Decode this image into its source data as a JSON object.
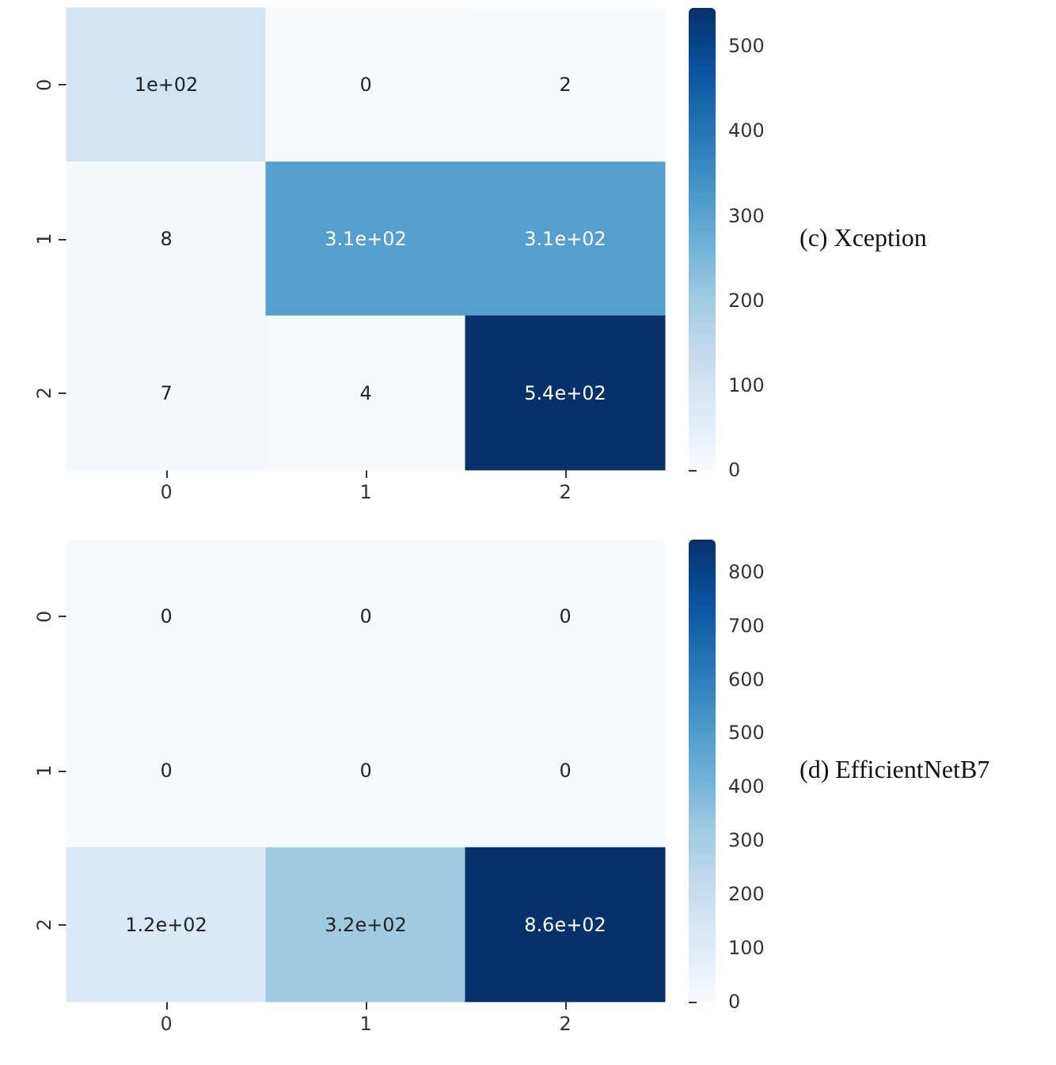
{
  "chart_data": [
    {
      "type": "heatmap",
      "categories": [
        "0",
        "1",
        "2"
      ],
      "y_categories": [
        "0",
        "1",
        "2"
      ],
      "cells": [
        [
          100,
          0,
          2
        ],
        [
          8,
          310,
          310
        ],
        [
          7,
          4,
          545
        ]
      ],
      "cell_labels": [
        [
          "1e+02",
          "0",
          "2"
        ],
        [
          "8",
          "3.1e+02",
          "3.1e+02"
        ],
        [
          "7",
          "4",
          "5.4e+02"
        ]
      ],
      "clim": [
        0,
        545
      ],
      "cticks": [
        0,
        100,
        200,
        300,
        400,
        500
      ],
      "annotations": [
        "(c) Xception"
      ]
    },
    {
      "type": "heatmap",
      "categories": [
        "0",
        "1",
        "2"
      ],
      "y_categories": [
        "0",
        "1",
        "2"
      ],
      "cells": [
        [
          0,
          0,
          0
        ],
        [
          0,
          0,
          0
        ],
        [
          120,
          320,
          860
        ]
      ],
      "cell_labels": [
        [
          "0",
          "0",
          "0"
        ],
        [
          "0",
          "0",
          "0"
        ],
        [
          "1.2e+02",
          "3.2e+02",
          "8.6e+02"
        ]
      ],
      "clim": [
        0,
        860
      ],
      "cticks": [
        0,
        100,
        200,
        300,
        400,
        500,
        600,
        700,
        800
      ],
      "annotations": [
        "(d) EfficientNetB7"
      ]
    }
  ]
}
